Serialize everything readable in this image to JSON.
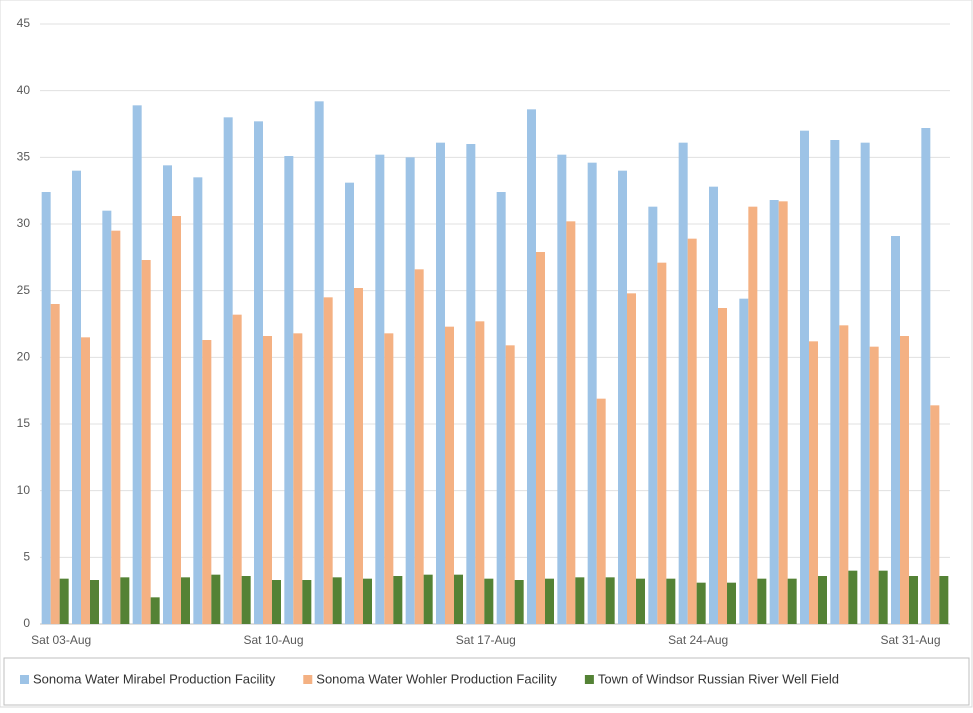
{
  "chart_data": {
    "type": "bar",
    "categories": [
      "Sat 03-Aug",
      null,
      null,
      null,
      null,
      null,
      null,
      "Sat 10-Aug",
      null,
      null,
      null,
      null,
      null,
      null,
      "Sat 17-Aug",
      null,
      null,
      null,
      null,
      null,
      null,
      "Sat 24-Aug",
      null,
      null,
      null,
      null,
      null,
      null,
      "Sat 31-Aug",
      null
    ],
    "series": [
      {
        "name": "Sonoma Water Mirabel Production Facility",
        "color": "#9dc3e6",
        "values": [
          32.4,
          34,
          31,
          38.9,
          34.4,
          33.5,
          38,
          37.7,
          35.1,
          39.2,
          33.1,
          35.2,
          35,
          36.1,
          36,
          32.4,
          38.6,
          35.2,
          34.6,
          34,
          31.3,
          36.1,
          32.8,
          24.4,
          31.8,
          37,
          36.3,
          36.1,
          29.1,
          37.2
        ]
      },
      {
        "name": "Sonoma Water Wohler Production Facility",
        "color": "#f4b183",
        "values": [
          24,
          21.5,
          29.5,
          27.3,
          30.6,
          21.3,
          23.2,
          21.6,
          21.8,
          24.5,
          25.2,
          21.8,
          26.6,
          22.3,
          22.7,
          20.9,
          27.9,
          30.2,
          16.9,
          24.8,
          27.1,
          28.9,
          23.7,
          31.3,
          31.7,
          21.2,
          22.4,
          20.8,
          21.6,
          16.4
        ]
      },
      {
        "name": "Town of Windsor Russian River Well Field",
        "color": "#548235",
        "values": [
          3.4,
          3.3,
          3.5,
          2.0,
          3.5,
          3.7,
          3.6,
          3.3,
          3.3,
          3.5,
          3.4,
          3.6,
          3.7,
          3.7,
          3.4,
          3.3,
          3.4,
          3.5,
          3.5,
          3.4,
          3.4,
          3.1,
          3.1,
          3.4,
          3.4,
          3.6,
          4.0,
          4.0,
          3.6,
          3.6
        ]
      }
    ],
    "ylim": [
      0,
      45
    ],
    "yticks": [
      0,
      5,
      10,
      15,
      20,
      25,
      30,
      35,
      40,
      45
    ],
    "grid": true,
    "legend": "bottom"
  }
}
